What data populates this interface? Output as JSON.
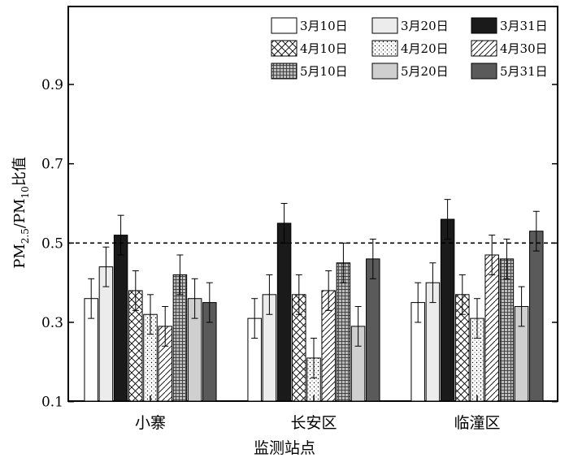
{
  "chart_data": {
    "type": "bar",
    "xlabel": "监测站点",
    "ylabel": "PM2.5/PM10比值",
    "ylabel_parts": {
      "pm_a": "PM",
      "sub_a": "2.5",
      "slash": "/PM",
      "sub_b": "10",
      "tail": "比值"
    },
    "ylim": [
      0.0,
      1.0
    ],
    "yticks": [
      "0.1",
      "0.3",
      "0.5",
      "0.7",
      "0.9"
    ],
    "reference_line": {
      "y": 0.5,
      "style": "dashed"
    },
    "categories": [
      "小寨",
      "长安区",
      "临潼区"
    ],
    "legend_position": "top-right",
    "series": [
      {
        "name": "3月10日",
        "values": [
          0.36,
          0.31,
          0.35
        ],
        "errors": [
          0.05,
          0.05,
          0.05
        ],
        "fill": "#ffffff",
        "pattern": "none"
      },
      {
        "name": "3月20日",
        "values": [
          0.44,
          0.37,
          0.4
        ],
        "errors": [
          0.05,
          0.05,
          0.05
        ],
        "fill": "#ececec",
        "pattern": "none"
      },
      {
        "name": "3月31日",
        "values": [
          0.52,
          0.55,
          0.56
        ],
        "errors": [
          0.05,
          0.05,
          0.05
        ],
        "fill": "#1a1a1a",
        "pattern": "none"
      },
      {
        "name": "4月10日",
        "values": [
          0.38,
          0.37,
          0.37
        ],
        "errors": [
          0.05,
          0.05,
          0.05
        ],
        "fill": "#ffffff",
        "pattern": "crosshatch"
      },
      {
        "name": "4月20日",
        "values": [
          0.32,
          0.21,
          0.31
        ],
        "errors": [
          0.05,
          0.05,
          0.05
        ],
        "fill": "#ffffff",
        "pattern": "dots"
      },
      {
        "name": "4月30日",
        "values": [
          0.29,
          0.38,
          0.47
        ],
        "errors": [
          0.05,
          0.05,
          0.05
        ],
        "fill": "#ffffff",
        "pattern": "diagonal"
      },
      {
        "name": "5月10日",
        "values": [
          0.42,
          0.45,
          0.46
        ],
        "errors": [
          0.05,
          0.05,
          0.05
        ],
        "fill": "#8c8c8c",
        "pattern": "grid"
      },
      {
        "name": "5月20日",
        "values": [
          0.36,
          0.29,
          0.34
        ],
        "errors": [
          0.05,
          0.05,
          0.05
        ],
        "fill": "#cfcfcf",
        "pattern": "none"
      },
      {
        "name": "5月31日",
        "values": [
          0.35,
          0.46,
          0.53
        ],
        "errors": [
          0.05,
          0.05,
          0.05
        ],
        "fill": "#5a5a5a",
        "pattern": "none"
      }
    ]
  }
}
